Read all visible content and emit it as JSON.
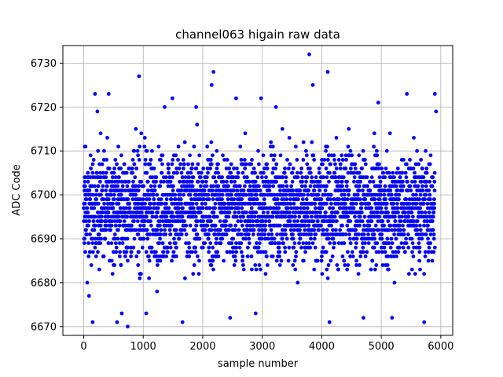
{
  "chart_data": {
    "type": "scatter",
    "title": "channel063 higain raw data",
    "xlabel": "sample number",
    "ylabel": "ADC Code",
    "xlim": [
      -350,
      6200
    ],
    "ylim": [
      6668,
      6734
    ],
    "xticks": [
      0,
      1000,
      2000,
      3000,
      4000,
      5000,
      6000
    ],
    "yticks": [
      6670,
      6680,
      6690,
      6700,
      6710,
      6720,
      6730
    ],
    "grid": true,
    "marker_color": "#0000ff",
    "series": [
      {
        "n_samples": 5900,
        "x_range": [
          0,
          5900
        ],
        "typical_range": [
          6676,
          6719
        ],
        "center": 6697,
        "points": [
          [
            30,
            6696
          ],
          [
            120,
            6702
          ],
          [
            240,
            6690
          ],
          [
            380,
            6705
          ],
          [
            470,
            6693
          ],
          [
            610,
            6699
          ],
          [
            720,
            6688
          ],
          [
            850,
            6707
          ],
          [
            960,
            6695
          ],
          [
            1080,
            6701
          ],
          [
            1190,
            6686
          ],
          [
            1310,
            6709
          ],
          [
            1420,
            6697
          ],
          [
            1540,
            6692
          ],
          [
            1660,
            6704
          ],
          [
            1770,
            6689
          ],
          [
            1890,
            6700
          ],
          [
            2010,
            6694
          ],
          [
            2130,
            6708
          ],
          [
            2240,
            6687
          ],
          [
            2360,
            6698
          ],
          [
            2480,
            6703
          ],
          [
            2590,
            6691
          ],
          [
            2710,
            6706
          ],
          [
            2830,
            6696
          ],
          [
            2950,
            6684
          ],
          [
            3060,
            6702
          ],
          [
            3180,
            6711
          ],
          [
            3300,
            6693
          ],
          [
            3410,
            6699
          ],
          [
            3530,
            6688
          ],
          [
            3650,
            6705
          ],
          [
            3760,
            6697
          ],
          [
            3880,
            6690
          ],
          [
            4000,
            6707
          ],
          [
            4110,
            6694
          ],
          [
            4230,
            6701
          ],
          [
            4350,
            6686
          ],
          [
            4460,
            6709
          ],
          [
            4580,
            6698
          ],
          [
            4700,
            6692
          ],
          [
            4810,
            6703
          ],
          [
            4930,
            6689
          ],
          [
            5050,
            6700
          ],
          [
            5160,
            6695
          ],
          [
            5280,
            6706
          ],
          [
            5400,
            6687
          ],
          [
            5510,
            6699
          ],
          [
            5630,
            6704
          ],
          [
            5750,
            6691
          ],
          [
            5860,
            6697
          ],
          [
            20,
            6711
          ],
          [
            60,
            6680
          ],
          [
            90,
            6677
          ],
          [
            150,
            6671
          ],
          [
            190,
            6723
          ],
          [
            230,
            6719
          ],
          [
            420,
            6723
          ],
          [
            560,
            6671
          ],
          [
            640,
            6673
          ],
          [
            740,
            6670
          ],
          [
            930,
            6727
          ],
          [
            1050,
            6673
          ],
          [
            1360,
            6720
          ],
          [
            1490,
            6722
          ],
          [
            1660,
            6671
          ],
          [
            1890,
            6720
          ],
          [
            2150,
            6725
          ],
          [
            2180,
            6728
          ],
          [
            2460,
            6672
          ],
          [
            2560,
            6722
          ],
          [
            2890,
            6673
          ],
          [
            2980,
            6722
          ],
          [
            3230,
            6720
          ],
          [
            3790,
            6732
          ],
          [
            3850,
            6725
          ],
          [
            4100,
            6728
          ],
          [
            4130,
            6671
          ],
          [
            4700,
            6672
          ],
          [
            4950,
            6721
          ],
          [
            5180,
            6672
          ],
          [
            5430,
            6723
          ],
          [
            5720,
            6671
          ],
          [
            5900,
            6723
          ],
          [
            5920,
            6719
          ]
        ]
      }
    ]
  }
}
